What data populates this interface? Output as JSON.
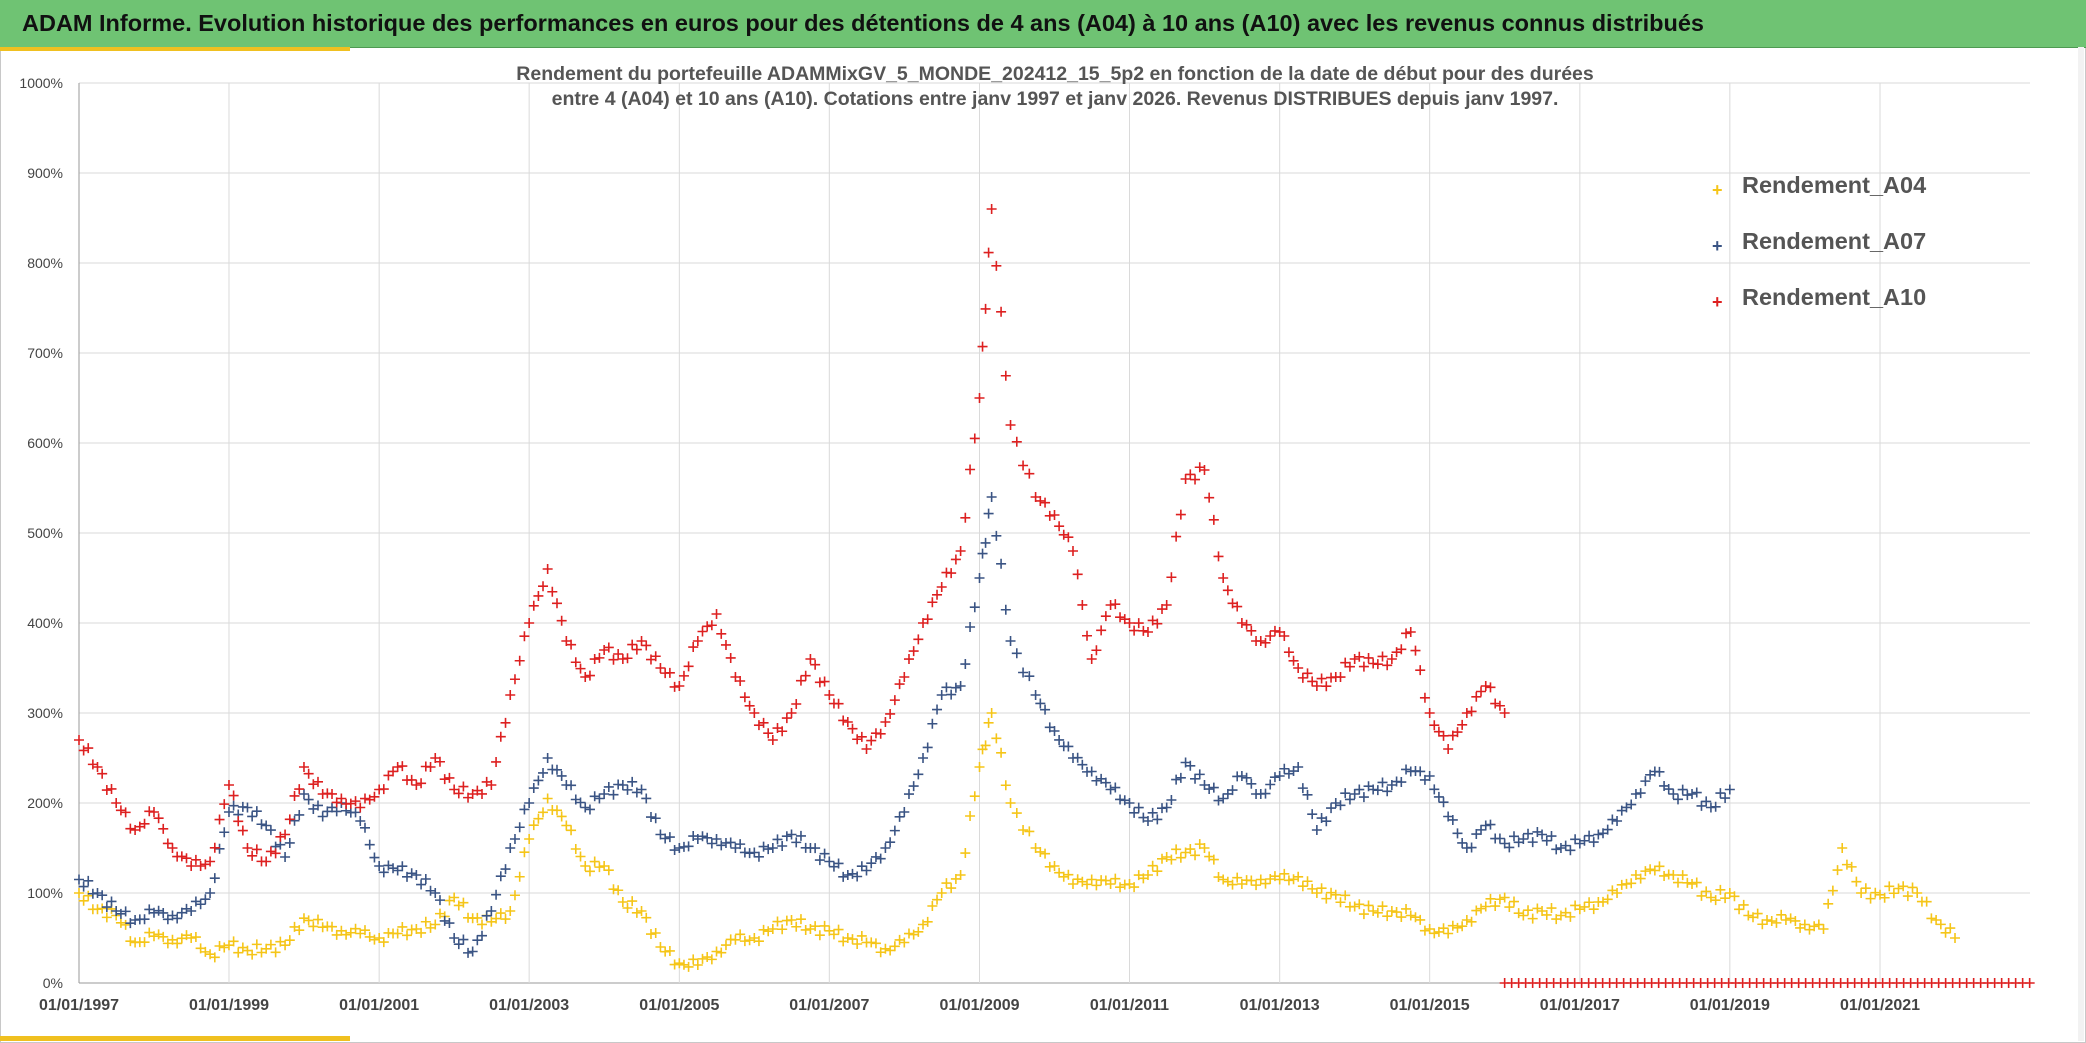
{
  "banner": {
    "title": "ADAM Informe. Evolution historique des performances en euros pour des détentions de 4 ans (A04) à 10 ans (A10) avec les revenus connus distribués"
  },
  "colors": {
    "banner_bg": "#6fc373",
    "accent": "#f0c020"
  },
  "chart_data": {
    "type": "scatter",
    "title_line1": "Rendement du portefeuille ADAMMixGV_5_MONDE_202412_15_5p2  en fonction de la date de début pour des durées",
    "title_line2": "entre 4 (A04) et 10 ans (A10). Cotations entre janv 1997 et janv 2026. Revenus DISTRIBUES depuis janv 1997.",
    "marker": "+",
    "x_is_date": true,
    "xlim": [
      "1997-01-01",
      "2023-01-01"
    ],
    "ylim": [
      0,
      1000
    ],
    "y_ticks": [
      "0%",
      "100%",
      "200%",
      "300%",
      "400%",
      "500%",
      "600%",
      "700%",
      "800%",
      "900%",
      "1000%"
    ],
    "x_ticks": [
      "01/01/1997",
      "01/01/1999",
      "01/01/2001",
      "01/01/2003",
      "01/01/2005",
      "01/01/2007",
      "01/01/2009",
      "01/01/2011",
      "01/01/2013",
      "01/01/2015",
      "01/01/2017",
      "01/01/2019",
      "01/01/2021"
    ],
    "grid": true,
    "legend_position": "top-right",
    "series": [
      {
        "name": "Rendement_A04",
        "color": "#f5c518",
        "x": [
          "1997-01-01",
          "1997-04-01",
          "1997-07-01",
          "1997-10-01",
          "1998-01-01",
          "1998-04-01",
          "1998-07-01",
          "1998-10-01",
          "1999-01-01",
          "1999-04-01",
          "1999-07-01",
          "1999-10-01",
          "2000-01-01",
          "2000-04-01",
          "2000-07-01",
          "2000-10-01",
          "2001-01-01",
          "2001-04-01",
          "2001-07-01",
          "2001-10-01",
          "2002-01-01",
          "2002-04-01",
          "2002-07-01",
          "2002-10-01",
          "2003-01-01",
          "2003-04-01",
          "2003-07-01",
          "2003-10-01",
          "2004-01-01",
          "2004-04-01",
          "2004-07-01",
          "2004-10-01",
          "2005-01-01",
          "2005-04-01",
          "2005-07-01",
          "2005-10-01",
          "2006-01-01",
          "2006-04-01",
          "2006-07-01",
          "2006-10-01",
          "2007-01-01",
          "2007-04-01",
          "2007-07-01",
          "2007-10-01",
          "2008-01-01",
          "2008-04-01",
          "2008-07-01",
          "2008-10-01",
          "2009-01-01",
          "2009-03-01",
          "2009-06-01",
          "2009-10-01",
          "2010-01-01",
          "2010-04-01",
          "2010-07-01",
          "2010-10-01",
          "2011-01-01",
          "2011-04-01",
          "2011-07-01",
          "2011-10-01",
          "2012-01-01",
          "2012-04-01",
          "2012-07-01",
          "2012-10-01",
          "2013-01-01",
          "2013-04-01",
          "2013-07-01",
          "2013-10-01",
          "2014-01-01",
          "2014-04-01",
          "2014-07-01",
          "2014-10-01",
          "2015-01-01",
          "2015-04-01",
          "2015-07-01",
          "2015-10-01",
          "2016-01-01",
          "2016-04-01",
          "2016-07-01",
          "2016-10-01",
          "2017-01-01",
          "2017-04-01",
          "2017-07-01",
          "2017-10-01",
          "2018-01-01",
          "2018-04-01",
          "2018-07-01",
          "2018-10-01",
          "2019-01-01",
          "2019-04-01",
          "2019-07-01",
          "2019-10-01",
          "2020-01-01",
          "2020-04-01",
          "2020-07-01",
          "2020-10-01",
          "2021-01-01",
          "2021-04-01",
          "2021-07-01",
          "2021-10-01",
          "2022-01-01"
        ],
        "values": [
          100,
          82,
          75,
          45,
          52,
          48,
          50,
          32,
          42,
          36,
          38,
          42,
          72,
          62,
          58,
          55,
          50,
          55,
          60,
          65,
          95,
          72,
          68,
          80,
          160,
          205,
          175,
          130,
          130,
          90,
          80,
          40,
          22,
          20,
          35,
          48,
          50,
          60,
          70,
          60,
          58,
          50,
          45,
          38,
          45,
          65,
          100,
          120,
          240,
          300,
          200,
          150,
          130,
          110,
          115,
          110,
          110,
          120,
          140,
          145,
          150,
          115,
          110,
          115,
          115,
          118,
          100,
          98,
          85,
          80,
          80,
          75,
          60,
          55,
          70,
          85,
          95,
          75,
          80,
          75,
          82,
          90,
          100,
          120,
          125,
          120,
          110,
          95,
          100,
          75,
          70,
          70,
          65,
          60,
          150,
          100,
          98,
          105,
          100,
          70,
          50
        ]
      },
      {
        "name": "Rendement_A07",
        "color": "#3a5484",
        "x": [
          "1997-01-01",
          "1997-04-01",
          "1997-07-01",
          "1997-10-01",
          "1998-01-01",
          "1998-04-01",
          "1998-07-01",
          "1998-10-01",
          "1999-01-01",
          "1999-04-01",
          "1999-07-01",
          "1999-10-01",
          "2000-01-01",
          "2000-04-01",
          "2000-07-01",
          "2000-10-01",
          "2001-01-01",
          "2001-04-01",
          "2001-07-01",
          "2001-10-01",
          "2002-01-01",
          "2002-04-01",
          "2002-07-01",
          "2002-10-01",
          "2003-01-01",
          "2003-04-01",
          "2003-07-01",
          "2003-10-01",
          "2004-01-01",
          "2004-04-01",
          "2004-07-01",
          "2004-10-01",
          "2005-01-01",
          "2005-04-01",
          "2005-07-01",
          "2005-10-01",
          "2006-01-01",
          "2006-04-01",
          "2006-07-01",
          "2006-10-01",
          "2007-01-01",
          "2007-04-01",
          "2007-07-01",
          "2007-10-01",
          "2008-01-01",
          "2008-04-01",
          "2008-07-01",
          "2008-10-01",
          "2009-01-01",
          "2009-03-01",
          "2009-06-01",
          "2009-10-01",
          "2010-01-01",
          "2010-04-01",
          "2010-07-01",
          "2010-10-01",
          "2011-01-01",
          "2011-04-01",
          "2011-07-01",
          "2011-10-01",
          "2012-01-01",
          "2012-04-01",
          "2012-07-01",
          "2012-10-01",
          "2013-01-01",
          "2013-04-01",
          "2013-07-01",
          "2013-10-01",
          "2014-01-01",
          "2014-04-01",
          "2014-07-01",
          "2014-10-01",
          "2015-01-01",
          "2015-04-01",
          "2015-07-01",
          "2015-10-01",
          "2016-01-01",
          "2016-04-01",
          "2016-07-01",
          "2016-10-01",
          "2017-01-01",
          "2017-04-01",
          "2017-07-01",
          "2017-10-01",
          "2018-01-01",
          "2018-04-01",
          "2018-07-01",
          "2018-10-01",
          "2019-01-01"
        ],
        "values": [
          115,
          100,
          80,
          70,
          78,
          75,
          80,
          100,
          190,
          195,
          175,
          140,
          210,
          185,
          200,
          180,
          130,
          125,
          120,
          100,
          50,
          35,
          80,
          150,
          200,
          250,
          220,
          195,
          210,
          220,
          215,
          165,
          150,
          160,
          160,
          150,
          145,
          150,
          165,
          150,
          135,
          120,
          125,
          150,
          190,
          250,
          320,
          330,
          450,
          540,
          380,
          320,
          280,
          250,
          235,
          215,
          200,
          180,
          195,
          245,
          220,
          205,
          230,
          210,
          230,
          240,
          170,
          200,
          210,
          215,
          220,
          235,
          230,
          185,
          150,
          175,
          155,
          160,
          165,
          150,
          155,
          165,
          180,
          210,
          235,
          210,
          210,
          195,
          215
        ]
      },
      {
        "name": "Rendement_A10",
        "color": "#dd2020",
        "x": [
          "1997-01-01",
          "1997-04-01",
          "1997-07-01",
          "1997-10-01",
          "1998-01-01",
          "1998-04-01",
          "1998-07-01",
          "1998-10-01",
          "1999-01-01",
          "1999-04-01",
          "1999-07-01",
          "1999-10-01",
          "2000-01-01",
          "2000-04-01",
          "2000-07-01",
          "2000-10-01",
          "2001-01-01",
          "2001-04-01",
          "2001-07-01",
          "2001-10-01",
          "2002-01-01",
          "2002-04-01",
          "2002-07-01",
          "2002-10-01",
          "2003-01-01",
          "2003-04-01",
          "2003-07-01",
          "2003-10-01",
          "2004-01-01",
          "2004-04-01",
          "2004-07-01",
          "2004-10-01",
          "2005-01-01",
          "2005-04-01",
          "2005-07-01",
          "2005-10-01",
          "2006-01-01",
          "2006-04-01",
          "2006-07-01",
          "2006-10-01",
          "2007-01-01",
          "2007-04-01",
          "2007-07-01",
          "2007-10-01",
          "2008-01-01",
          "2008-04-01",
          "2008-07-01",
          "2008-10-01",
          "2009-01-01",
          "2009-03-01",
          "2009-06-01",
          "2009-10-01",
          "2010-01-01",
          "2010-04-01",
          "2010-07-01",
          "2010-10-01",
          "2011-01-01",
          "2011-04-01",
          "2011-07-01",
          "2011-10-01",
          "2012-01-01",
          "2012-04-01",
          "2012-07-01",
          "2012-10-01",
          "2013-01-01",
          "2013-04-01",
          "2013-07-01",
          "2013-10-01",
          "2014-01-01",
          "2014-04-01",
          "2014-07-01",
          "2014-10-01",
          "2015-01-01",
          "2015-04-01",
          "2015-07-01",
          "2015-10-01",
          "2016-01-01"
        ],
        "values": [
          270,
          240,
          200,
          170,
          190,
          150,
          130,
          135,
          220,
          150,
          135,
          165,
          240,
          210,
          205,
          195,
          215,
          240,
          220,
          250,
          215,
          210,
          220,
          320,
          400,
          460,
          380,
          340,
          370,
          360,
          380,
          350,
          330,
          380,
          410,
          340,
          300,
          270,
          300,
          360,
          320,
          290,
          260,
          290,
          340,
          400,
          440,
          480,
          650,
          860,
          620,
          540,
          520,
          480,
          360,
          420,
          400,
          390,
          420,
          560,
          570,
          450,
          400,
          380,
          390,
          350,
          330,
          340,
          360,
          355,
          360,
          390,
          300,
          260,
          300,
          330,
          300
        ]
      },
      {
        "name": "",
        "color": "#dd2020",
        "x": [
          "2016-01-01",
          "2023-01-01"
        ],
        "values": [
          0,
          0
        ]
      }
    ]
  }
}
